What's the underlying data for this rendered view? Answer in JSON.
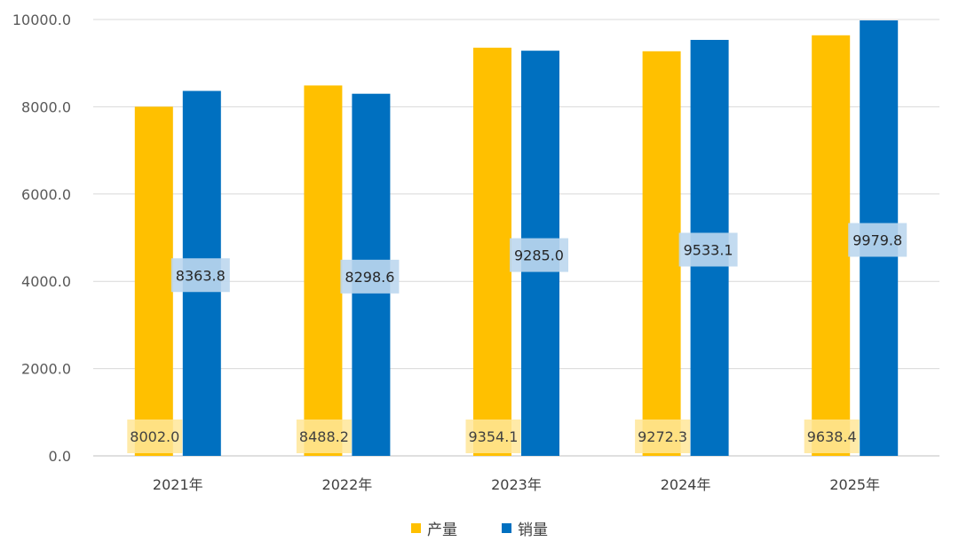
{
  "chart_data": {
    "type": "bar",
    "categories": [
      "2021年",
      "2022年",
      "2023年",
      "2024年",
      "2025年"
    ],
    "series": [
      {
        "name": "产量",
        "color": "#FFC000",
        "values": [
          8002.0,
          8488.2,
          9354.1,
          9272.3,
          9638.4
        ]
      },
      {
        "name": "销量",
        "color": "#0070C0",
        "values": [
          8363.8,
          8298.6,
          9285.0,
          9533.1,
          9979.8
        ]
      }
    ],
    "ylim": [
      0,
      10000
    ],
    "yticks": [
      "0.0",
      "2000.0",
      "4000.0",
      "6000.0",
      "8000.0",
      "10000.0"
    ],
    "grid": true,
    "legend_position": "bottom"
  }
}
